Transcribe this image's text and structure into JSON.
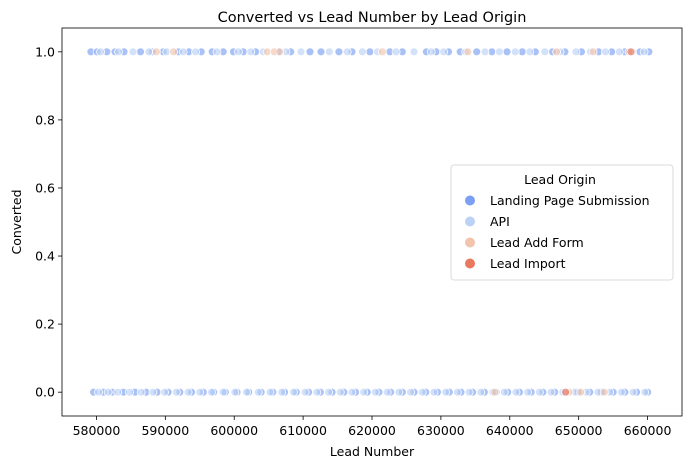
{
  "chart_data": {
    "type": "scatter",
    "title": "Converted vs Lead Number by Lead Origin",
    "xlabel": "Lead Number",
    "ylabel": "Converted",
    "xlim": [
      575000,
      665000
    ],
    "ylim": [
      -0.07,
      1.07
    ],
    "xticks": [
      580000,
      590000,
      600000,
      610000,
      620000,
      630000,
      640000,
      650000,
      660000
    ],
    "yticks": [
      0.0,
      0.2,
      0.4,
      0.6,
      0.8,
      1.0
    ],
    "grid": false,
    "legend": {
      "title": "Lead Origin",
      "placement": "center-right"
    },
    "series": [
      {
        "name": "Landing Page Submission",
        "color": "#7b9ff2",
        "points": [
          [
            579200,
            1
          ],
          [
            580100,
            1
          ],
          [
            581500,
            1
          ],
          [
            582700,
            1
          ],
          [
            584000,
            1
          ],
          [
            586400,
            1
          ],
          [
            588100,
            1
          ],
          [
            589700,
            1
          ],
          [
            591900,
            1
          ],
          [
            593400,
            1
          ],
          [
            595200,
            1
          ],
          [
            596800,
            1
          ],
          [
            598400,
            1
          ],
          [
            599900,
            1
          ],
          [
            601300,
            1
          ],
          [
            603100,
            1
          ],
          [
            606400,
            1
          ],
          [
            608200,
            1
          ],
          [
            611000,
            1
          ],
          [
            612600,
            1
          ],
          [
            615200,
            1
          ],
          [
            617100,
            1
          ],
          [
            619700,
            1
          ],
          [
            622600,
            1
          ],
          [
            624400,
            1
          ],
          [
            627900,
            1
          ],
          [
            629300,
            1
          ],
          [
            631100,
            1
          ],
          [
            632800,
            1
          ],
          [
            635200,
            1
          ],
          [
            637400,
            1
          ],
          [
            639600,
            1
          ],
          [
            641800,
            1
          ],
          [
            643700,
            1
          ],
          [
            646200,
            1
          ],
          [
            648000,
            1
          ],
          [
            650400,
            1
          ],
          [
            652900,
            1
          ],
          [
            654800,
            1
          ],
          [
            656700,
            1
          ],
          [
            658900,
            1
          ],
          [
            660200,
            1
          ],
          [
            579600,
            0
          ],
          [
            581000,
            0
          ],
          [
            582300,
            0
          ],
          [
            583900,
            0
          ],
          [
            585600,
            0
          ],
          [
            587200,
            0
          ],
          [
            588800,
            0
          ],
          [
            590400,
            0
          ],
          [
            592100,
            0
          ],
          [
            593800,
            0
          ],
          [
            595500,
            0
          ],
          [
            597000,
            0
          ],
          [
            598700,
            0
          ],
          [
            600400,
            0
          ],
          [
            602100,
            0
          ],
          [
            603900,
            0
          ],
          [
            605600,
            0
          ],
          [
            607300,
            0
          ],
          [
            609000,
            0
          ],
          [
            610800,
            0
          ],
          [
            612500,
            0
          ],
          [
            614200,
            0
          ],
          [
            615900,
            0
          ],
          [
            617600,
            0
          ],
          [
            619300,
            0
          ],
          [
            621000,
            0
          ],
          [
            622700,
            0
          ],
          [
            624400,
            0
          ],
          [
            626100,
            0
          ],
          [
            627800,
            0
          ],
          [
            629500,
            0
          ],
          [
            631200,
            0
          ],
          [
            632900,
            0
          ],
          [
            634600,
            0
          ],
          [
            636300,
            0
          ],
          [
            638000,
            0
          ],
          [
            639700,
            0
          ],
          [
            641400,
            0
          ],
          [
            643100,
            0
          ],
          [
            644800,
            0
          ],
          [
            646500,
            0
          ],
          [
            648200,
            0
          ],
          [
            649900,
            0
          ],
          [
            651600,
            0
          ],
          [
            653300,
            0
          ],
          [
            655000,
            0
          ],
          [
            656700,
            0
          ],
          [
            658400,
            0
          ],
          [
            660000,
            0
          ]
        ]
      },
      {
        "name": "API",
        "color": "#bcd2f5",
        "points": [
          [
            580600,
            1
          ],
          [
            583200,
            1
          ],
          [
            585300,
            1
          ],
          [
            587600,
            1
          ],
          [
            590200,
            1
          ],
          [
            592600,
            1
          ],
          [
            594400,
            1
          ],
          [
            597500,
            1
          ],
          [
            600600,
            1
          ],
          [
            602400,
            1
          ],
          [
            604200,
            1
          ],
          [
            607500,
            1
          ],
          [
            609700,
            1
          ],
          [
            613800,
            1
          ],
          [
            616400,
            1
          ],
          [
            618600,
            1
          ],
          [
            620800,
            1
          ],
          [
            623500,
            1
          ],
          [
            626100,
            1
          ],
          [
            628600,
            1
          ],
          [
            630400,
            1
          ],
          [
            633600,
            1
          ],
          [
            636400,
            1
          ],
          [
            638500,
            1
          ],
          [
            640800,
            1
          ],
          [
            642900,
            1
          ],
          [
            645100,
            1
          ],
          [
            647300,
            1
          ],
          [
            649600,
            1
          ],
          [
            651700,
            1
          ],
          [
            653900,
            1
          ],
          [
            655900,
            1
          ],
          [
            657800,
            1
          ],
          [
            659500,
            1
          ],
          [
            580300,
            0
          ],
          [
            581700,
            0
          ],
          [
            583100,
            0
          ],
          [
            584800,
            0
          ],
          [
            586500,
            0
          ],
          [
            588200,
            0
          ],
          [
            589900,
            0
          ],
          [
            591600,
            0
          ],
          [
            593300,
            0
          ],
          [
            595000,
            0
          ],
          [
            596700,
            0
          ],
          [
            598400,
            0
          ],
          [
            600100,
            0
          ],
          [
            601800,
            0
          ],
          [
            603500,
            0
          ],
          [
            605200,
            0
          ],
          [
            606900,
            0
          ],
          [
            608600,
            0
          ],
          [
            610300,
            0
          ],
          [
            612000,
            0
          ],
          [
            613700,
            0
          ],
          [
            615400,
            0
          ],
          [
            617100,
            0
          ],
          [
            618800,
            0
          ],
          [
            620500,
            0
          ],
          [
            622200,
            0
          ],
          [
            623900,
            0
          ],
          [
            625600,
            0
          ],
          [
            627300,
            0
          ],
          [
            629000,
            0
          ],
          [
            630700,
            0
          ],
          [
            632400,
            0
          ],
          [
            634100,
            0
          ],
          [
            635800,
            0
          ],
          [
            637500,
            0
          ],
          [
            639200,
            0
          ],
          [
            640900,
            0
          ],
          [
            642600,
            0
          ],
          [
            644300,
            0
          ],
          [
            646000,
            0
          ],
          [
            647700,
            0
          ],
          [
            649400,
            0
          ],
          [
            651100,
            0
          ],
          [
            652800,
            0
          ],
          [
            654500,
            0
          ],
          [
            656200,
            0
          ],
          [
            657900,
            0
          ],
          [
            659600,
            0
          ]
        ]
      },
      {
        "name": "Lead Add Form",
        "color": "#f2c4ad",
        "points": [
          [
            588700,
            1
          ],
          [
            591200,
            1
          ],
          [
            604800,
            1
          ],
          [
            605800,
            1
          ],
          [
            606600,
            1
          ],
          [
            621500,
            1
          ],
          [
            633900,
            1
          ],
          [
            646800,
            1
          ],
          [
            652100,
            1
          ],
          [
            657300,
            1
          ],
          [
            637800,
            0
          ],
          [
            648600,
            0
          ],
          [
            650300,
            0
          ],
          [
            653700,
            0
          ]
        ]
      },
      {
        "name": "Lead Import",
        "color": "#e9785f",
        "points": [
          [
            648100,
            0
          ],
          [
            657600,
            1
          ]
        ]
      }
    ]
  }
}
